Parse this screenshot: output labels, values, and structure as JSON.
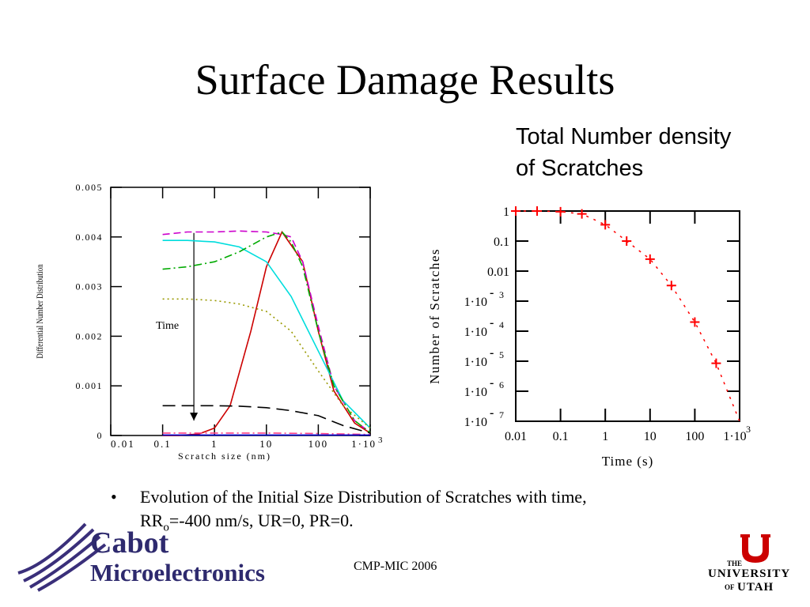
{
  "slide": {
    "title": "Surface Damage Results",
    "subtitle_line1": "Total Number density",
    "subtitle_line2": "of Scratches",
    "bullet_symbol": "•",
    "bullet_line1": "Evolution of the Initial Size Distribution of Scratches with time,",
    "bullet_line2_pre": "RR",
    "bullet_line2_sub": "o",
    "bullet_line2_post": "=-400 nm/s, UR=0, PR=0.",
    "footer": "CMP-MIC 2006"
  },
  "logos": {
    "cabot_line1": "Cabot",
    "cabot_line2": "Microelectronics",
    "utah_line1": "THE",
    "utah_line2": "UNIVERSITY",
    "utah_line3_a": "OF",
    "utah_line3_b": "UTAH",
    "utah_color": "#cc0000",
    "cabot_color": "#2e2a6e"
  },
  "chart_data": [
    {
      "type": "line",
      "title": "",
      "xlabel": "Scratch size (nm)",
      "ylabel": "Differential Number Distribution",
      "x_scale": "log",
      "xlim": [
        0.01,
        1000
      ],
      "ylim": [
        0,
        0.005
      ],
      "x_tick_labels": [
        "0.01",
        "0.1",
        "1",
        "10",
        "100",
        "1·10",
        "3"
      ],
      "y_tick_labels": [
        "0.005",
        "0.004",
        "0.003",
        "0.002",
        "0.001",
        "0"
      ],
      "annotation": "Time",
      "series": [
        {
          "style": "solid",
          "color": "#cc0000",
          "x": [
            0.1,
            0.2,
            0.5,
            1,
            2,
            5,
            10,
            20,
            50,
            100,
            200,
            500,
            1000
          ],
          "y": [
            0,
            0,
            3e-05,
            0.00015,
            0.0006,
            0.0021,
            0.0034,
            0.0041,
            0.0035,
            0.0021,
            0.0009,
            0.00025,
            5e-05
          ]
        },
        {
          "style": "dash",
          "color": "#cc00cc",
          "x": [
            0.1,
            0.3,
            1,
            3,
            10,
            20,
            30,
            50,
            100,
            200,
            500,
            1000
          ],
          "y": [
            0.00405,
            0.0041,
            0.0041,
            0.00412,
            0.0041,
            0.00405,
            0.004,
            0.0035,
            0.0022,
            0.001,
            0.0003,
            6e-05
          ]
        },
        {
          "style": "solid",
          "color": "#00dddd",
          "x": [
            0.1,
            0.3,
            1,
            3,
            10,
            30,
            100,
            300,
            1000
          ],
          "y": [
            0.00393,
            0.00393,
            0.0039,
            0.0038,
            0.0035,
            0.0028,
            0.0017,
            0.0007,
            0.00015
          ]
        },
        {
          "style": "dashdot",
          "color": "#00aa00",
          "x": [
            0.1,
            0.3,
            1,
            3,
            10,
            20,
            30,
            50,
            100,
            200,
            500,
            1000
          ],
          "y": [
            0.00335,
            0.0034,
            0.0035,
            0.0037,
            0.004,
            0.0041,
            0.0039,
            0.0034,
            0.0021,
            0.001,
            0.0003,
            6e-05
          ]
        },
        {
          "style": "dot",
          "color": "#999900",
          "x": [
            0.1,
            0.3,
            1,
            3,
            10,
            30,
            100,
            300,
            1000
          ],
          "y": [
            0.00275,
            0.00275,
            0.00272,
            0.00265,
            0.0025,
            0.0021,
            0.0013,
            0.0006,
            0.00015
          ]
        },
        {
          "style": "longdash",
          "color": "#000000",
          "x": [
            0.1,
            0.3,
            1,
            3,
            10,
            30,
            100,
            300,
            1000
          ],
          "y": [
            0.0006,
            0.0006,
            0.0006,
            0.00059,
            0.00056,
            0.0005,
            0.0004,
            0.0002,
            5e-05
          ]
        },
        {
          "style": "dashdot",
          "color": "#ff4488",
          "x": [
            0.1,
            1,
            10,
            100,
            1000
          ],
          "y": [
            5e-05,
            5e-05,
            5e-05,
            4e-05,
            2e-05
          ]
        },
        {
          "style": "solid",
          "color": "#0000cc",
          "x": [
            0.1,
            1,
            10,
            100,
            1000
          ],
          "y": [
            1e-05,
            1e-05,
            1e-05,
            1e-05,
            1e-05
          ]
        }
      ]
    },
    {
      "type": "scatter",
      "title": "",
      "xlabel": "Time (s)",
      "ylabel": "Number of Scratches",
      "x_scale": "log",
      "y_scale": "log",
      "xlim": [
        0.01,
        1000
      ],
      "ylim": [
        1e-07,
        1
      ],
      "x_tick_labels": [
        "0.01",
        "0.1",
        "1",
        "10",
        "100",
        "1·10",
        "3"
      ],
      "y_tick_labels": [
        {
          "base": "1",
          "exp": ""
        },
        {
          "base": "0.1",
          "exp": ""
        },
        {
          "base": "0.01",
          "exp": ""
        },
        {
          "base": "1·10",
          "exp": "3"
        },
        {
          "base": "1·10",
          "exp": "4"
        },
        {
          "base": "1·10",
          "exp": "5"
        },
        {
          "base": "1·10",
          "exp": "6"
        },
        {
          "base": "1·10",
          "exp": "7"
        }
      ],
      "series": [
        {
          "marker": "+",
          "color": "#ff0000",
          "x": [
            0.01,
            0.03,
            0.1,
            0.3,
            1,
            3,
            10,
            30,
            100,
            300
          ],
          "y": [
            1,
            1,
            0.95,
            0.8,
            0.35,
            0.1,
            0.025,
            0.0033,
            0.0002,
            8.5e-06
          ]
        }
      ]
    }
  ]
}
